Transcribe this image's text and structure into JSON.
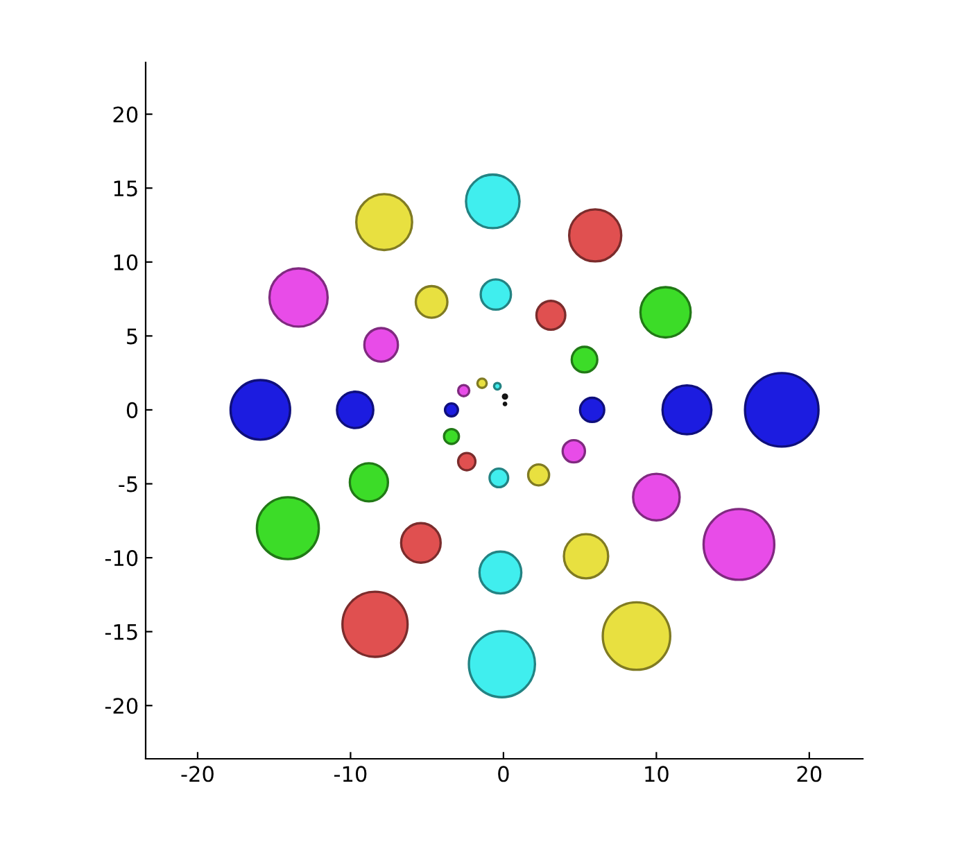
{
  "chart_data": {
    "type": "bubble",
    "x": [
      0.1,
      0.1,
      -0.4,
      -1.4,
      -2.6,
      -3.4,
      -3.4,
      -2.4,
      -0.3,
      2.3,
      4.6,
      5.8,
      5.3,
      3.1,
      -0.5,
      -4.7,
      -8.0,
      -9.7,
      -8.8,
      -5.4,
      -0.2,
      5.4,
      10.0,
      12.0,
      10.6,
      6.0,
      -0.7,
      -7.8,
      -13.4,
      -15.9,
      -14.1,
      -8.4,
      -0.1,
      8.7,
      15.4,
      18.2
    ],
    "values": [
      0.4,
      0.9,
      1.6,
      1.8,
      1.3,
      0.0,
      -1.8,
      -3.5,
      -4.6,
      -4.4,
      -2.8,
      0.0,
      3.4,
      6.4,
      7.8,
      7.3,
      4.4,
      0.0,
      -4.9,
      -9.0,
      -11.0,
      -9.9,
      -5.9,
      0.0,
      6.6,
      11.8,
      14.1,
      12.7,
      7.6,
      0.0,
      -8.0,
      -14.5,
      -17.2,
      -15.3,
      -9.1,
      0.0
    ],
    "sizes": [
      0.001,
      0.003,
      0.008,
      0.016,
      0.023,
      0.031,
      0.041,
      0.055,
      0.064,
      0.081,
      0.092,
      0.108,
      0.121,
      0.154,
      0.169,
      0.185,
      0.208,
      0.244,
      0.269,
      0.289,
      0.324,
      0.362,
      0.401,
      0.442,
      0.467,
      0.502,
      0.53,
      0.577,
      0.626,
      0.656,
      0.709,
      0.785,
      0.808,
      0.842,
      0.925,
      1
    ],
    "colors": [
      "#222222",
      "#222222",
      "#40eeee",
      "#e8e040",
      "#e84ce8",
      "#1c1ce0",
      "#3cdc28",
      "#e05050",
      "#40eeee",
      "#e8e040",
      "#e84ce8",
      "#1c1ce0",
      "#3cdc28",
      "#e05050",
      "#40eeee",
      "#e8e040",
      "#e84ce8",
      "#1c1ce0",
      "#3cdc28",
      "#e05050",
      "#40eeee",
      "#e8e040",
      "#e84ce8",
      "#1c1ce0",
      "#3cdc28",
      "#e05050",
      "#40eeee",
      "#e8e040",
      "#e84ce8",
      "#1c1ce0",
      "#3cdc28",
      "#e05050",
      "#40eeee",
      "#e8e040",
      "#e84ce8",
      "#1c1ce0"
    ],
    "xlim": [
      -23.4,
      23.5
    ],
    "ylim": [
      -23.6,
      23.5
    ],
    "xticks": [
      {
        "value": -20,
        "label": "-20"
      },
      {
        "value": -10,
        "label": "-10"
      },
      0,
      10,
      20
    ],
    "yticks": [
      {
        "value": -20,
        "label": "-20"
      },
      {
        "value": -15,
        "label": "-15"
      },
      {
        "value": -10,
        "label": "-10"
      },
      {
        "value": -5,
        "label": "-5"
      },
      0,
      5,
      10,
      15,
      20
    ],
    "grid": false,
    "legend": false
  }
}
